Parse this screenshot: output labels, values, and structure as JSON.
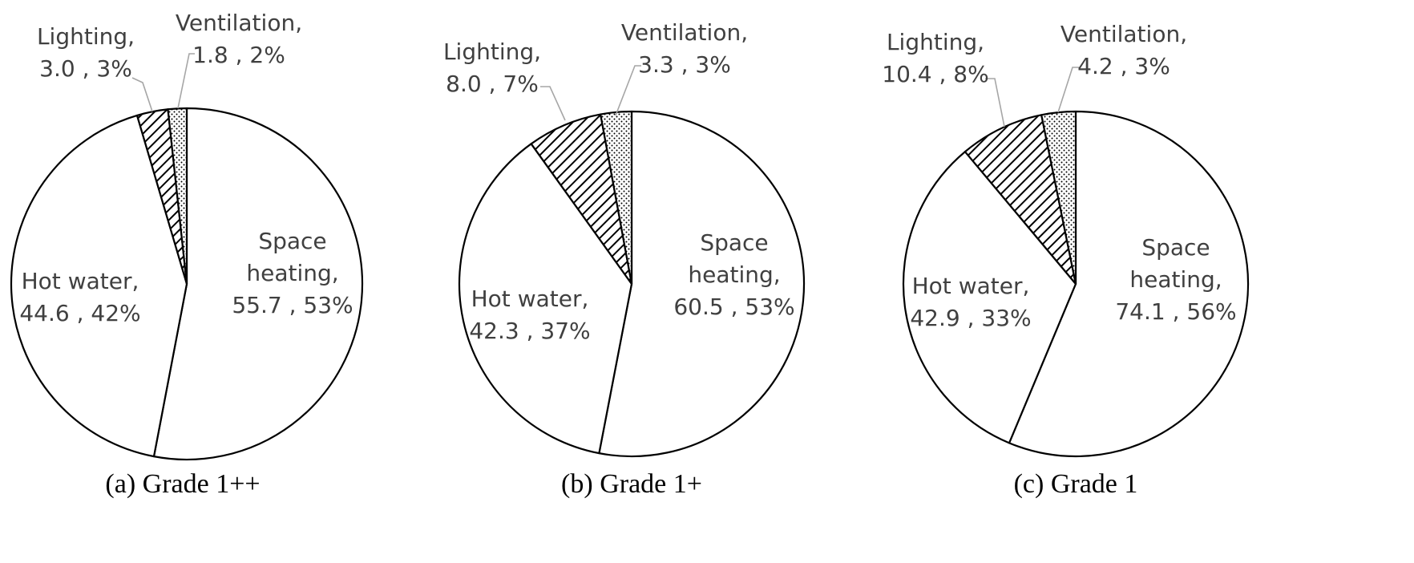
{
  "chart_data": [
    {
      "type": "pie",
      "caption": "(a) Grade 1++",
      "order": [
        "Space heating",
        "Hot water",
        "Lighting",
        "Ventilation"
      ],
      "slices": [
        {
          "key": "space-heating",
          "label": [
            "Space",
            "heating,",
            "55.7 , 53%"
          ],
          "value": 55.7,
          "percent": 53,
          "pattern": "none"
        },
        {
          "key": "hot-water",
          "label": [
            "Hot water,",
            "44.6 , 42%"
          ],
          "value": 44.6,
          "percent": 42,
          "pattern": "none"
        },
        {
          "key": "lighting",
          "label": [
            "Lighting,",
            "3.0 , 3%"
          ],
          "value": 3.0,
          "percent": 3,
          "pattern": "diagonal-hatch"
        },
        {
          "key": "ventilation",
          "label": [
            "Ventilation,",
            "1.8 , 2%"
          ],
          "value": 1.8,
          "percent": 2,
          "pattern": "dots"
        }
      ]
    },
    {
      "type": "pie",
      "caption": "(b) Grade 1+",
      "order": [
        "Space heating",
        "Hot water",
        "Lighting",
        "Ventilation"
      ],
      "slices": [
        {
          "key": "space-heating",
          "label": [
            "Space",
            "heating,",
            "60.5 , 53%"
          ],
          "value": 60.5,
          "percent": 53,
          "pattern": "none"
        },
        {
          "key": "hot-water",
          "label": [
            "Hot water,",
            "42.3 , 37%"
          ],
          "value": 42.3,
          "percent": 37,
          "pattern": "none"
        },
        {
          "key": "lighting",
          "label": [
            "Lighting,",
            "8.0 , 7%"
          ],
          "value": 8.0,
          "percent": 7,
          "pattern": "diagonal-hatch"
        },
        {
          "key": "ventilation",
          "label": [
            "Ventilation,",
            "3.3 , 3%"
          ],
          "value": 3.3,
          "percent": 3,
          "pattern": "dots"
        }
      ]
    },
    {
      "type": "pie",
      "caption": "(c) Grade 1",
      "order": [
        "Space heating",
        "Hot water",
        "Lighting",
        "Ventilation"
      ],
      "slices": [
        {
          "key": "space-heating",
          "label": [
            "Space",
            "heating,",
            "74.1 , 56%"
          ],
          "value": 74.1,
          "percent": 56,
          "pattern": "none"
        },
        {
          "key": "hot-water",
          "label": [
            "Hot water,",
            "42.9 , 33%"
          ],
          "value": 42.9,
          "percent": 33,
          "pattern": "none"
        },
        {
          "key": "lighting",
          "label": [
            "Lighting,",
            "10.4 , 8%"
          ],
          "value": 10.4,
          "percent": 8,
          "pattern": "diagonal-hatch"
        },
        {
          "key": "ventilation",
          "label": [
            "Ventilation,",
            "4.2 , 3%"
          ],
          "value": 4.2,
          "percent": 3,
          "pattern": "dots"
        }
      ]
    }
  ],
  "colors": {
    "fill": "#ffffff",
    "stroke": "#000000",
    "label_text": "#404040",
    "leader_line": "#a6a6a6",
    "caption_text": "#000000"
  }
}
